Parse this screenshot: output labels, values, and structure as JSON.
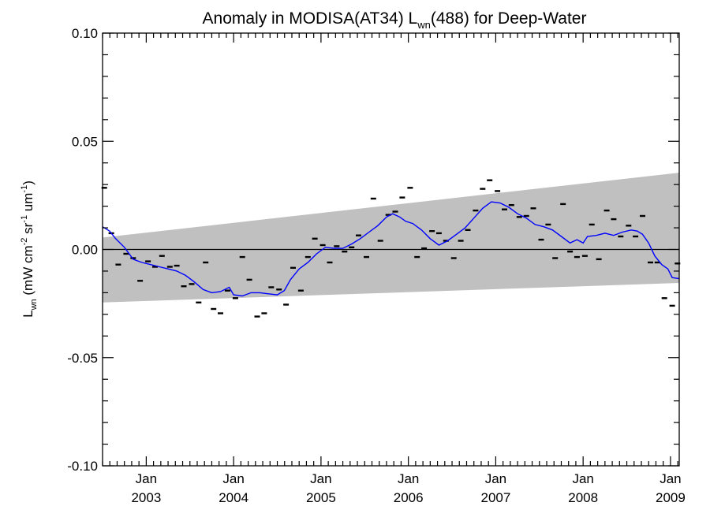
{
  "chart_data": {
    "type": "scatter",
    "title": {
      "pre": "Anomaly in MODISA(AT34) L",
      "sub": "wn",
      "post": "(488) for Deep-Water"
    },
    "ylabel": {
      "pre": "L",
      "sub": "wn",
      "mid1": " (mW cm",
      "sup1": "-2",
      "mid2": " sr",
      "sup2": "-1",
      "mid3": " um",
      "sup3": "-1",
      "post": ")"
    },
    "ylim": [
      -0.1,
      0.1
    ],
    "xlim": [
      2002.5,
      2009.1
    ],
    "yticks": [
      {
        "value": 0.1,
        "label": "0.10"
      },
      {
        "value": 0.05,
        "label": "0.05"
      },
      {
        "value": 0.0,
        "label": "0.00"
      },
      {
        "value": -0.05,
        "label": "-0.05"
      },
      {
        "value": -0.1,
        "label": "-0.10"
      }
    ],
    "xticks": [
      {
        "value": 2003,
        "month": "Jan",
        "year": "2003"
      },
      {
        "value": 2004,
        "month": "Jan",
        "year": "2004"
      },
      {
        "value": 2005,
        "month": "Jan",
        "year": "2005"
      },
      {
        "value": 2006,
        "month": "Jan",
        "year": "2006"
      },
      {
        "value": 2007,
        "month": "Jan",
        "year": "2007"
      },
      {
        "value": 2008,
        "month": "Jan",
        "year": "2008"
      },
      {
        "value": 2009,
        "month": "Jan",
        "year": "2009"
      }
    ],
    "band": {
      "x": [
        2002.5,
        2009.1
      ],
      "upper": [
        0.0055,
        0.0355
      ],
      "lower": [
        -0.0245,
        -0.0155
      ]
    },
    "zero_line": 0.0,
    "colors": {
      "points": "#000000",
      "smooth": "#0000ff",
      "band": "#c0c0c0"
    },
    "points": [
      [
        2002.52,
        0.0285
      ],
      [
        2002.6,
        0.0075
      ],
      [
        2002.68,
        -0.007
      ],
      [
        2002.77,
        -0.002
      ],
      [
        2002.85,
        -0.004
      ],
      [
        2002.93,
        -0.0145
      ],
      [
        2003.02,
        -0.0055
      ],
      [
        2003.1,
        -0.008
      ],
      [
        2003.18,
        -0.003
      ],
      [
        2003.27,
        -0.008
      ],
      [
        2003.35,
        -0.0075
      ],
      [
        2003.43,
        -0.017
      ],
      [
        2003.52,
        -0.016
      ],
      [
        2003.6,
        -0.0245
      ],
      [
        2003.68,
        -0.006
      ],
      [
        2003.77,
        -0.0275
      ],
      [
        2003.85,
        -0.0295
      ],
      [
        2003.93,
        -0.019
      ],
      [
        2004.02,
        -0.0225
      ],
      [
        2004.1,
        -0.0035
      ],
      [
        2004.18,
        -0.014
      ],
      [
        2004.27,
        -0.031
      ],
      [
        2004.35,
        -0.0295
      ],
      [
        2004.43,
        -0.0175
      ],
      [
        2004.52,
        -0.0185
      ],
      [
        2004.6,
        -0.0255
      ],
      [
        2004.68,
        -0.0085
      ],
      [
        2004.77,
        -0.019
      ],
      [
        2004.85,
        -0.0035
      ],
      [
        2004.93,
        0.005
      ],
      [
        2005.02,
        0.002
      ],
      [
        2005.1,
        -0.006
      ],
      [
        2005.18,
        0.0015
      ],
      [
        2005.27,
        -0.001
      ],
      [
        2005.35,
        0.001
      ],
      [
        2005.43,
        0.0065
      ],
      [
        2005.52,
        -0.0035
      ],
      [
        2005.6,
        0.0235
      ],
      [
        2005.68,
        0.004
      ],
      [
        2005.77,
        0.016
      ],
      [
        2005.85,
        0.0175
      ],
      [
        2005.93,
        0.024
      ],
      [
        2006.02,
        0.0285
      ],
      [
        2006.1,
        -0.0035
      ],
      [
        2006.18,
        0.0005
      ],
      [
        2006.27,
        0.0085
      ],
      [
        2006.35,
        0.0075
      ],
      [
        2006.43,
        0.004
      ],
      [
        2006.52,
        -0.004
      ],
      [
        2006.6,
        0.004
      ],
      [
        2006.68,
        0.009
      ],
      [
        2006.77,
        0.018
      ],
      [
        2006.85,
        0.028
      ],
      [
        2006.93,
        0.032
      ],
      [
        2007.02,
        0.027
      ],
      [
        2007.1,
        0.0185
      ],
      [
        2007.18,
        0.0205
      ],
      [
        2007.27,
        0.015
      ],
      [
        2007.35,
        0.0155
      ],
      [
        2007.43,
        0.019
      ],
      [
        2007.52,
        0.0045
      ],
      [
        2007.6,
        0.0115
      ],
      [
        2007.68,
        -0.004
      ],
      [
        2007.77,
        0.021
      ],
      [
        2007.85,
        -0.001
      ],
      [
        2007.93,
        -0.0035
      ],
      [
        2008.02,
        -0.003
      ],
      [
        2008.1,
        0.0115
      ],
      [
        2008.18,
        -0.0045
      ],
      [
        2008.27,
        0.018
      ],
      [
        2008.35,
        0.014
      ],
      [
        2008.43,
        0.006
      ],
      [
        2008.52,
        0.011
      ],
      [
        2008.6,
        0.006
      ],
      [
        2008.68,
        0.0155
      ],
      [
        2008.77,
        -0.006
      ],
      [
        2008.85,
        -0.006
      ],
      [
        2008.93,
        -0.0225
      ],
      [
        2009.02,
        -0.026
      ],
      [
        2009.08,
        -0.0065
      ]
    ],
    "smooth": [
      [
        2002.5,
        0.0105
      ],
      [
        2002.58,
        0.0085
      ],
      [
        2002.65,
        0.005
      ],
      [
        2002.75,
        0.001
      ],
      [
        2002.85,
        -0.0045
      ],
      [
        2002.95,
        -0.006
      ],
      [
        2003.05,
        -0.007
      ],
      [
        2003.15,
        -0.008
      ],
      [
        2003.25,
        -0.009
      ],
      [
        2003.35,
        -0.01
      ],
      [
        2003.45,
        -0.012
      ],
      [
        2003.55,
        -0.015
      ],
      [
        2003.65,
        -0.0185
      ],
      [
        2003.75,
        -0.02
      ],
      [
        2003.85,
        -0.0195
      ],
      [
        2003.95,
        -0.0175
      ],
      [
        2004.0,
        -0.021
      ],
      [
        2004.1,
        -0.0215
      ],
      [
        2004.2,
        -0.02
      ],
      [
        2004.3,
        -0.02
      ],
      [
        2004.4,
        -0.0205
      ],
      [
        2004.5,
        -0.021
      ],
      [
        2004.58,
        -0.019
      ],
      [
        2004.65,
        -0.014
      ],
      [
        2004.75,
        -0.009
      ],
      [
        2004.85,
        -0.006
      ],
      [
        2004.95,
        -0.002
      ],
      [
        2005.05,
        0.001
      ],
      [
        2005.15,
        0.0005
      ],
      [
        2005.25,
        0.0005
      ],
      [
        2005.35,
        0.0025
      ],
      [
        2005.45,
        0.005
      ],
      [
        2005.55,
        0.008
      ],
      [
        2005.65,
        0.011
      ],
      [
        2005.75,
        0.015
      ],
      [
        2005.82,
        0.0165
      ],
      [
        2005.9,
        0.015
      ],
      [
        2005.97,
        0.013
      ],
      [
        2006.05,
        0.012
      ],
      [
        2006.15,
        0.009
      ],
      [
        2006.25,
        0.005
      ],
      [
        2006.35,
        0.002
      ],
      [
        2006.45,
        0.004
      ],
      [
        2006.55,
        0.007
      ],
      [
        2006.65,
        0.01
      ],
      [
        2006.75,
        0.0145
      ],
      [
        2006.85,
        0.019
      ],
      [
        2006.95,
        0.022
      ],
      [
        2007.05,
        0.0215
      ],
      [
        2007.15,
        0.0195
      ],
      [
        2007.25,
        0.0165
      ],
      [
        2007.35,
        0.0145
      ],
      [
        2007.45,
        0.0115
      ],
      [
        2007.55,
        0.0105
      ],
      [
        2007.65,
        0.009
      ],
      [
        2007.75,
        0.006
      ],
      [
        2007.85,
        0.003
      ],
      [
        2007.93,
        0.0045
      ],
      [
        2008.0,
        0.003
      ],
      [
        2008.05,
        0.006
      ],
      [
        2008.15,
        0.0065
      ],
      [
        2008.25,
        0.0075
      ],
      [
        2008.35,
        0.0065
      ],
      [
        2008.45,
        0.008
      ],
      [
        2008.55,
        0.009
      ],
      [
        2008.62,
        0.0085
      ],
      [
        2008.68,
        0.007
      ],
      [
        2008.75,
        0.003
      ],
      [
        2008.82,
        -0.003
      ],
      [
        2008.9,
        -0.007
      ],
      [
        2008.97,
        -0.009
      ],
      [
        2009.02,
        -0.013
      ],
      [
        2009.1,
        -0.0135
      ]
    ]
  }
}
